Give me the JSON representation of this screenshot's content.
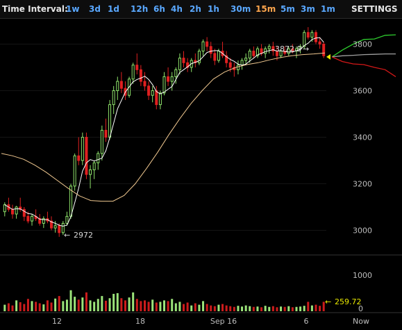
{
  "toolbar": {
    "label": "Time Interval:",
    "intervals": [
      "1w",
      "3d",
      "1d",
      "12h",
      "6h",
      "4h",
      "2h",
      "1h",
      "30m",
      "15m",
      "5m",
      "3m",
      "1m"
    ],
    "active_interval": "15m",
    "settings_label": "SETTINGS"
  },
  "chart_data": {
    "type": "candlestick",
    "price_axis": {
      "ticks": [
        3000,
        3200,
        3400,
        3600,
        3800
      ],
      "range": [
        2900,
        3900
      ]
    },
    "volume_axis": {
      "ticks": [
        0,
        1000
      ],
      "range": [
        0,
        1400
      ]
    },
    "x_ticks": [
      "12",
      "18",
      "Sep 16",
      "6",
      "Now"
    ],
    "annotations": {
      "high_label": "3872.9",
      "low_label": "2972",
      "volume_label": "259.72"
    },
    "colors": {
      "up": "#8fe36b",
      "down": "#e02020",
      "ma_fast": "#ffffff",
      "ma_slow": "#f0c890",
      "last_marker": "#e8e800",
      "volume_label": "#e8e800"
    },
    "ma_slow": [
      3330,
      3320,
      3305,
      3280,
      3250,
      3215,
      3180,
      3148,
      3128,
      3125,
      3125,
      3150,
      3200,
      3265,
      3335,
      3410,
      3480,
      3545,
      3600,
      3650,
      3680,
      3700,
      3712,
      3720,
      3732,
      3742,
      3750,
      3755,
      3758,
      3762
    ],
    "forecast": {
      "upper": [
        3745,
        3775,
        3800,
        3820,
        3822,
        3838,
        3840
      ],
      "middle": [
        3745,
        3750,
        3752,
        3755,
        3756,
        3758,
        3758
      ],
      "lower": [
        3745,
        3725,
        3715,
        3712,
        3700,
        3690,
        3660
      ]
    },
    "candles": [
      [
        3080,
        3120,
        3060,
        3110
      ],
      [
        3110,
        3140,
        3080,
        3090
      ],
      [
        3090,
        3110,
        3050,
        3070
      ],
      [
        3070,
        3105,
        3050,
        3100
      ],
      [
        3100,
        3140,
        3080,
        3090
      ],
      [
        3090,
        3100,
        3040,
        3060
      ],
      [
        3060,
        3080,
        3030,
        3040
      ],
      [
        3040,
        3070,
        3020,
        3060
      ],
      [
        3060,
        3090,
        3040,
        3050
      ],
      [
        3050,
        3070,
        3020,
        3030
      ],
      [
        3030,
        3060,
        3010,
        3050
      ],
      [
        3050,
        3080,
        3030,
        3040
      ],
      [
        3040,
        3060,
        3000,
        3010
      ],
      [
        3010,
        3040,
        2990,
        3020
      ],
      [
        3020,
        3030,
        2972,
        2990
      ],
      [
        2990,
        3040,
        2980,
        3030
      ],
      [
        3030,
        3080,
        3020,
        3060
      ],
      [
        3060,
        3200,
        3050,
        3190
      ],
      [
        3190,
        3330,
        3170,
        3320
      ],
      [
        3320,
        3400,
        3280,
        3300
      ],
      [
        3300,
        3420,
        3280,
        3400
      ],
      [
        3400,
        3420,
        3220,
        3240
      ],
      [
        3240,
        3280,
        3180,
        3260
      ],
      [
        3260,
        3300,
        3220,
        3290
      ],
      [
        3290,
        3340,
        3260,
        3330
      ],
      [
        3330,
        3450,
        3300,
        3430
      ],
      [
        3430,
        3480,
        3380,
        3400
      ],
      [
        3400,
        3560,
        3390,
        3540
      ],
      [
        3540,
        3620,
        3500,
        3600
      ],
      [
        3600,
        3660,
        3560,
        3640
      ],
      [
        3640,
        3680,
        3590,
        3610
      ],
      [
        3610,
        3640,
        3560,
        3580
      ],
      [
        3580,
        3660,
        3570,
        3650
      ],
      [
        3650,
        3720,
        3630,
        3710
      ],
      [
        3710,
        3760,
        3670,
        3690
      ],
      [
        3690,
        3710,
        3620,
        3640
      ],
      [
        3640,
        3680,
        3600,
        3620
      ],
      [
        3620,
        3640,
        3560,
        3580
      ],
      [
        3580,
        3620,
        3550,
        3600
      ],
      [
        3600,
        3620,
        3520,
        3540
      ],
      [
        3540,
        3600,
        3520,
        3590
      ],
      [
        3590,
        3680,
        3580,
        3660
      ],
      [
        3660,
        3700,
        3620,
        3640
      ],
      [
        3640,
        3680,
        3600,
        3660
      ],
      [
        3660,
        3700,
        3630,
        3690
      ],
      [
        3690,
        3760,
        3670,
        3740
      ],
      [
        3740,
        3770,
        3700,
        3720
      ],
      [
        3720,
        3740,
        3680,
        3700
      ],
      [
        3700,
        3740,
        3680,
        3730
      ],
      [
        3730,
        3760,
        3700,
        3720
      ],
      [
        3720,
        3780,
        3710,
        3770
      ],
      [
        3770,
        3820,
        3750,
        3810
      ],
      [
        3810,
        3830,
        3770,
        3790
      ],
      [
        3790,
        3810,
        3740,
        3760
      ],
      [
        3760,
        3780,
        3710,
        3730
      ],
      [
        3730,
        3780,
        3720,
        3770
      ],
      [
        3770,
        3810,
        3740,
        3750
      ],
      [
        3750,
        3770,
        3700,
        3720
      ],
      [
        3720,
        3740,
        3680,
        3700
      ],
      [
        3700,
        3720,
        3660,
        3690
      ],
      [
        3690,
        3730,
        3670,
        3710
      ],
      [
        3710,
        3740,
        3690,
        3730
      ],
      [
        3730,
        3760,
        3710,
        3740
      ],
      [
        3740,
        3780,
        3720,
        3770
      ],
      [
        3770,
        3790,
        3740,
        3750
      ],
      [
        3750,
        3790,
        3740,
        3780
      ],
      [
        3780,
        3800,
        3750,
        3760
      ],
      [
        3760,
        3790,
        3740,
        3780
      ],
      [
        3780,
        3800,
        3760,
        3790
      ],
      [
        3790,
        3810,
        3750,
        3770
      ],
      [
        3770,
        3790,
        3730,
        3750
      ],
      [
        3750,
        3780,
        3740,
        3770
      ],
      [
        3770,
        3790,
        3750,
        3760
      ],
      [
        3760,
        3790,
        3750,
        3780
      ],
      [
        3780,
        3800,
        3760,
        3770
      ],
      [
        3770,
        3790,
        3740,
        3780
      ],
      [
        3780,
        3800,
        3760,
        3790
      ],
      [
        3790,
        3860,
        3780,
        3850
      ],
      [
        3850,
        3872.9,
        3820,
        3830
      ],
      [
        3830,
        3860,
        3810,
        3850
      ],
      [
        3850,
        3860,
        3800,
        3810
      ],
      [
        3810,
        3830,
        3780,
        3800
      ],
      [
        3800,
        3810,
        3740,
        3750
      ]
    ],
    "volumes": [
      180,
      220,
      160,
      300,
      250,
      200,
      340,
      280,
      260,
      220,
      190,
      300,
      240,
      350,
      420,
      280,
      320,
      580,
      400,
      320,
      380,
      520,
      300,
      260,
      340,
      420,
      290,
      360,
      480,
      500,
      360,
      300,
      380,
      520,
      340,
      280,
      300,
      260,
      320,
      240,
      260,
      300,
      280,
      340,
      220,
      260,
      200,
      240,
      160,
      220,
      180,
      280,
      200,
      160,
      140,
      180,
      200,
      160,
      140,
      120,
      150,
      130,
      160,
      140,
      120,
      130,
      110,
      150,
      120,
      140,
      110,
      130,
      120,
      140,
      110,
      120,
      130,
      150,
      260,
      160,
      180,
      150,
      260
    ]
  }
}
